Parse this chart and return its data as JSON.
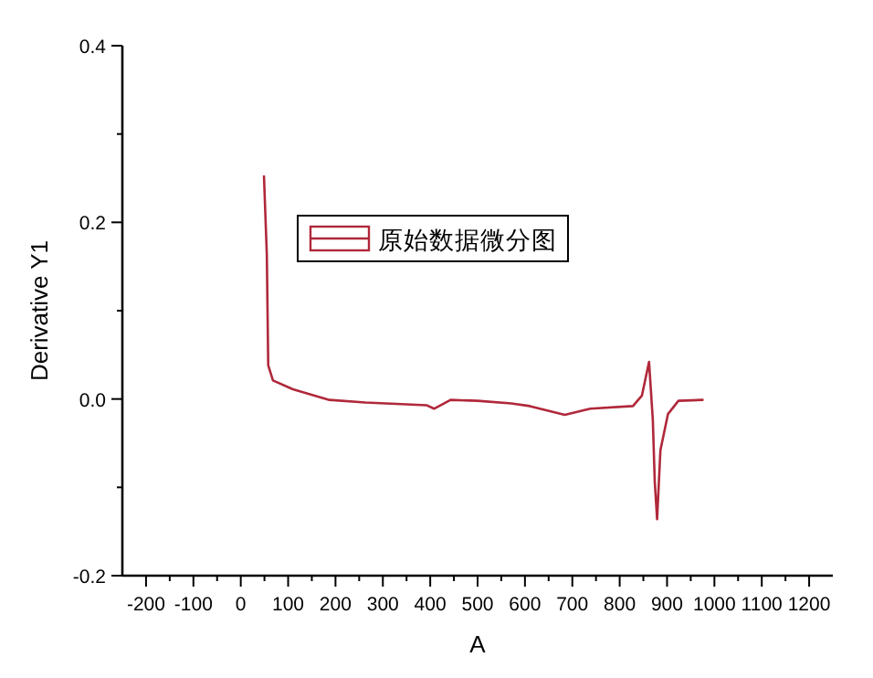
{
  "chart_data": {
    "type": "line",
    "xlabel": "A",
    "ylabel": "Derivative Y1",
    "xlim": [
      -250,
      1250
    ],
    "ylim": [
      -0.2,
      0.4
    ],
    "xticks": [
      -200,
      {
        "value": -150,
        "label": null
      },
      -100,
      {
        "value": -50,
        "label": null
      },
      0,
      {
        "value": 50,
        "label": null
      },
      100,
      {
        "value": 150,
        "label": null
      },
      200,
      {
        "value": 250,
        "label": null
      },
      300,
      {
        "value": 350,
        "label": null
      },
      400,
      {
        "value": 450,
        "label": null
      },
      500,
      {
        "value": 550,
        "label": null
      },
      600,
      {
        "value": 650,
        "label": null
      },
      700,
      {
        "value": 750,
        "label": null
      },
      800,
      {
        "value": 850,
        "label": null
      },
      900,
      {
        "value": 950,
        "label": null
      },
      1000,
      {
        "value": 1050,
        "label": null
      },
      1100,
      {
        "value": 1150,
        "label": null
      },
      1200
    ],
    "yticks": [
      -0.2,
      {
        "value": -0.1,
        "label": null
      },
      {
        "value": 0,
        "label": "0.0"
      },
      {
        "value": 0.1,
        "label": null
      },
      0.2,
      {
        "value": 0.3,
        "label": null
      },
      0.4
    ],
    "grid": false,
    "legend": "top left",
    "marker": "none",
    "line_style": "solid",
    "series": [
      {
        "name": "原始数据微分图",
        "color": "#b0283a",
        "x": [
          49,
          55,
          58,
          68,
          110,
          187,
          263,
          392,
          408,
          443,
          500,
          571,
          610,
          684,
          738,
          828,
          847,
          862,
          870,
          874,
          879,
          886,
          902,
          924,
          975
        ],
        "values": [
          0.252,
          0.163,
          0.038,
          0.021,
          0.011,
          -0.001,
          -0.004,
          -0.007,
          -0.011,
          -0.001,
          -0.002,
          -0.005,
          -0.008,
          -0.018,
          -0.011,
          -0.008,
          0.004,
          0.042,
          -0.024,
          -0.093,
          -0.136,
          -0.058,
          -0.017,
          -0.002,
          -0.001
        ]
      }
    ]
  }
}
